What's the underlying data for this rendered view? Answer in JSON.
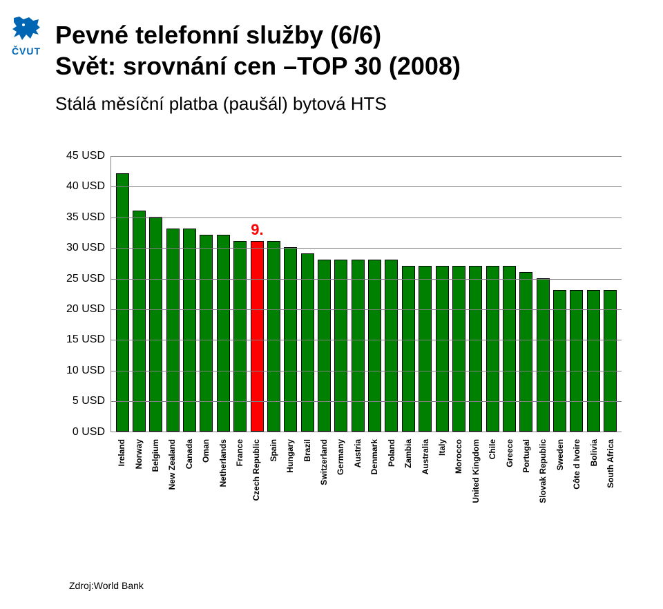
{
  "logo": {
    "text": "ČVUT",
    "color": "#0066b3"
  },
  "title_line1": "Pevné telefonní služby (6/6)",
  "title_line2": "Svět: srovnání cen –TOP 30 (2008)",
  "subtitle": "Stálá měsíční platba (paušál) bytová HTS",
  "chart": {
    "type": "bar",
    "y_unit": "USD",
    "ylim": [
      0,
      45
    ],
    "ytick_step": 5,
    "ytick_labels": [
      "0 USD",
      "5 USD",
      "10 USD",
      "15 USD",
      "20 USD",
      "25 USD",
      "30 USD",
      "35 USD",
      "40 USD",
      "45 USD"
    ],
    "grid_color": "#808080",
    "background_color": "#ffffff",
    "label_fontsize": 16,
    "x_label_fontsize": 12,
    "bar_width": 0.78,
    "bar_border_color": "#000000",
    "default_bar_color": "#008000",
    "highlight_bar_color": "#ff0000",
    "annotation": {
      "text": "9.",
      "index": 8,
      "color": "#ff0000",
      "fontsize": 22
    },
    "categories": [
      "Ireland",
      "Norway",
      "Belgium",
      "New Zealand",
      "Canada",
      "Oman",
      "Netherlands",
      "France",
      "Czech Republic",
      "Spain",
      "Hungary",
      "Brazil",
      "Switzerland",
      "Germany",
      "Austria",
      "Denmark",
      "Poland",
      "Zambia",
      "Australia",
      "Italy",
      "Morocco",
      "United Kingdom",
      "Chile",
      "Greece",
      "Portugal",
      "Slovak Republic",
      "Sweden",
      "Côte d Ivoire",
      "Bolivia",
      "South Africa"
    ],
    "values": [
      42,
      36,
      35,
      33,
      33,
      32,
      32,
      31,
      31,
      31,
      30,
      29,
      28,
      28,
      28,
      28,
      28,
      27,
      27,
      27,
      27,
      27,
      27,
      27,
      26,
      25,
      23,
      23,
      23,
      23
    ],
    "highlight_index": 8
  },
  "source_label": "Zdroj:World Bank"
}
